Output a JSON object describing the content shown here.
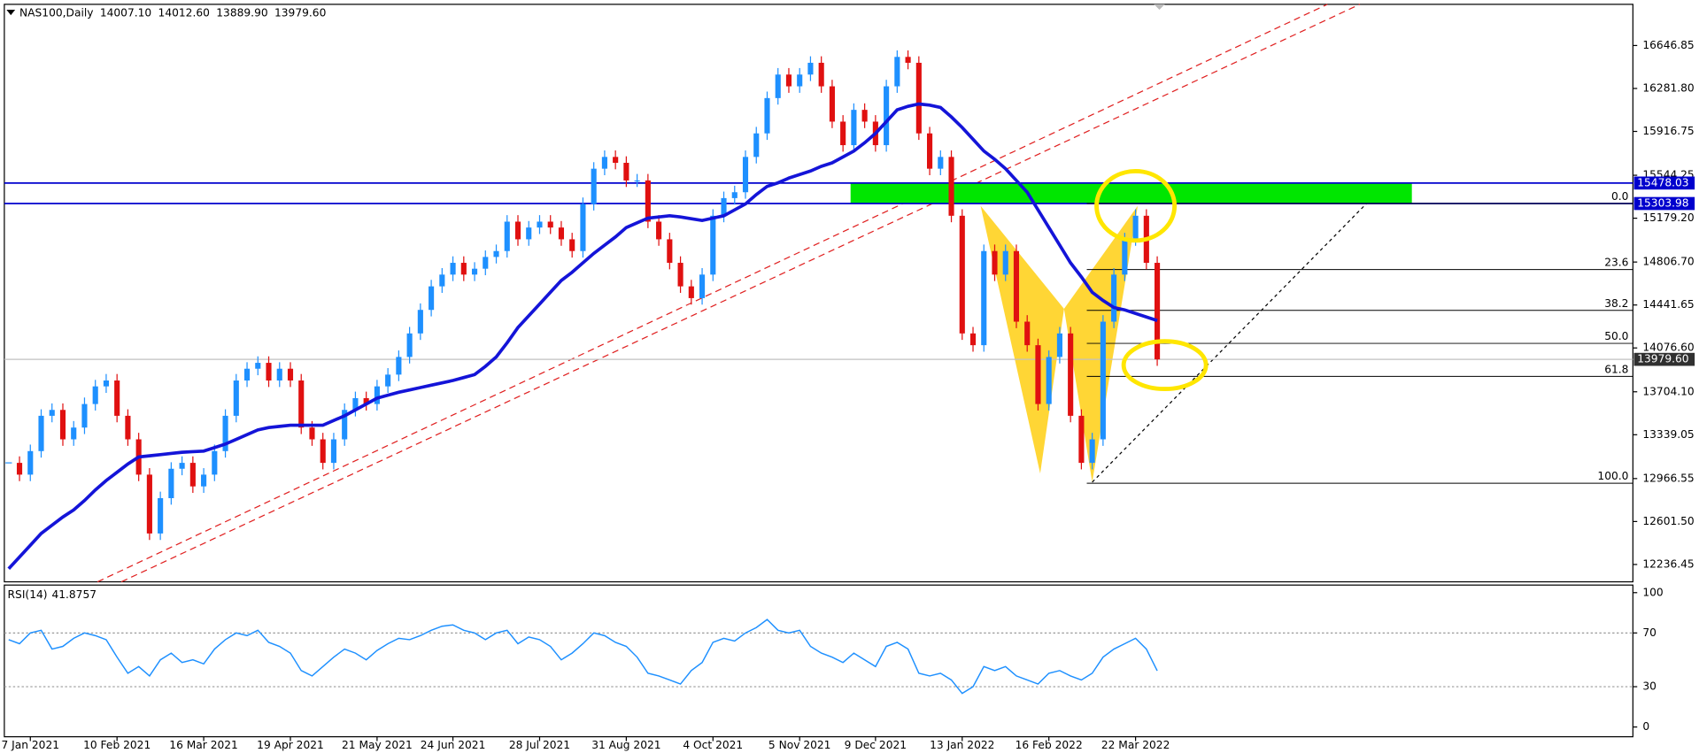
{
  "chart_data": [
    {
      "type": "candlestick",
      "title": "NAS100,Daily",
      "header_values": [
        14007.1,
        14012.6,
        13889.9,
        13979.6
      ],
      "header_value_labels": [
        "14007.10",
        "14012.60",
        "13889.90",
        "13979.60"
      ],
      "categories": [
        null,
        null,
        "7 Jan 2021",
        null,
        null,
        null,
        null,
        null,
        null,
        null,
        "10 Feb 2021",
        null,
        null,
        null,
        null,
        null,
        null,
        null,
        "16 Mar 2021",
        null,
        null,
        null,
        null,
        null,
        null,
        null,
        "19 Apr 2021",
        null,
        null,
        null,
        null,
        null,
        null,
        null,
        "21 May 2021",
        null,
        null,
        null,
        null,
        null,
        null,
        "24 Jun 2021",
        null,
        null,
        null,
        null,
        null,
        null,
        null,
        "28 Jul 2021",
        null,
        null,
        null,
        null,
        null,
        null,
        null,
        "31 Aug 2021",
        null,
        null,
        null,
        null,
        null,
        null,
        null,
        "4 Oct 2021",
        null,
        null,
        null,
        null,
        null,
        null,
        null,
        "5 Nov 2021",
        null,
        null,
        null,
        null,
        null,
        null,
        "9 Dec 2021",
        null,
        null,
        null,
        null,
        null,
        null,
        null,
        "13 Jan 2022",
        null,
        null,
        null,
        null,
        null,
        null,
        null,
        "16 Feb 2022",
        null,
        null,
        null,
        null,
        null,
        null,
        null,
        "22 Mar 2022",
        null,
        null
      ],
      "close": [
        13100,
        13000,
        13200,
        13500,
        13550,
        13300,
        13400,
        13600,
        13750,
        13800,
        13500,
        13300,
        13000,
        12500,
        12800,
        13050,
        13100,
        12900,
        13000,
        13200,
        13500,
        13800,
        13900,
        13950,
        13800,
        13900,
        13800,
        13400,
        13300,
        13100,
        13300,
        13550,
        13650,
        13600,
        13750,
        13850,
        14000,
        14200,
        14400,
        14600,
        14700,
        14800,
        14700,
        14750,
        14850,
        14900,
        15150,
        15000,
        15100,
        15150,
        15100,
        15000,
        14900,
        15300,
        15600,
        15700,
        15650,
        15500,
        15500,
        15150,
        15000,
        14800,
        14600,
        14500,
        14700,
        15200,
        15350,
        15400,
        15700,
        15900,
        16200,
        16400,
        16300,
        16400,
        16500,
        16300,
        16000,
        15800,
        16100,
        16000,
        15800,
        16300,
        16550,
        16500,
        15900,
        15600,
        15700,
        15200,
        14200,
        14100,
        14900,
        14700,
        14900,
        14300,
        14100,
        13600,
        14000,
        14200,
        13500,
        13100,
        13300,
        14300,
        14700,
        15000,
        15200,
        14800,
        13979.6
      ],
      "up_color": "#1e90ff",
      "down_color": "#e01010",
      "series": [
        {
          "color": "#1414d8",
          "values": [
            12200,
            12300,
            12400,
            12500,
            12570,
            12640,
            12700,
            12780,
            12870,
            12950,
            13020,
            13090,
            13150,
            13160,
            13170,
            13180,
            13190,
            13195,
            13200,
            13230,
            13260,
            13300,
            13340,
            13380,
            13400,
            13410,
            13420,
            13420,
            13420,
            13420,
            13460,
            13500,
            13550,
            13600,
            13650,
            13675,
            13700,
            13720,
            13740,
            13760,
            13780,
            13800,
            13825,
            13850,
            13920,
            14000,
            14120,
            14250,
            14350,
            14450,
            14550,
            14650,
            14720,
            14800,
            14880,
            14950,
            15020,
            15100,
            15140,
            15180,
            15190,
            15200,
            15190,
            15175,
            15160,
            15180,
            15200,
            15250,
            15300,
            15380,
            15450,
            15480,
            15520,
            15550,
            15580,
            15620,
            15650,
            15700,
            15750,
            15820,
            15900,
            16000,
            16100,
            16130,
            16150,
            16140,
            16120,
            16040,
            15950,
            15850,
            15750,
            15680,
            15600,
            15500,
            15400,
            15250,
            15100,
            14950,
            14800,
            14680,
            14550,
            14480,
            14420,
            14400,
            14370,
            14340,
            14310
          ]
        }
      ],
      "ylim": [
        12089.13,
        16996.74
      ],
      "yticks": [
        {
          "value": 16646.85,
          "label": "16646.85"
        },
        {
          "value": 16281.8,
          "label": "16281.80"
        },
        {
          "value": 15916.75,
          "label": "15916.75"
        },
        {
          "value": 15544.25,
          "label": "15544.25"
        },
        {
          "value": 15179.2,
          "label": "15179.20"
        },
        {
          "value": 14806.7,
          "label": "14806.70"
        },
        {
          "value": 14441.65,
          "label": "14441.65"
        },
        {
          "value": 14076.6,
          "label": "14076.60"
        },
        {
          "value": 13704.1,
          "label": "13704.10"
        },
        {
          "value": 13339.05,
          "label": "13339.05"
        },
        {
          "value": 12966.55,
          "label": "12966.55"
        },
        {
          "value": 12601.5,
          "label": "12601.50"
        },
        {
          "value": 12236.45,
          "label": "12236.45"
        }
      ],
      "levels": [
        15478.03,
        15303.98
      ],
      "level_color": "#0000cd",
      "zone_color": "#00e600",
      "last_price": {
        "value": 13979.6,
        "label": "13979.60"
      },
      "fib": {
        "high": 15303.98,
        "low": 12927.1,
        "levels": [
          {
            "value": 0,
            "label": "0.0"
          },
          23.6,
          38.2,
          {
            "value": 50,
            "label": "50.0"
          },
          61.8,
          {
            "value": 100,
            "label": "100.0"
          }
        ]
      }
    },
    {
      "type": "line",
      "title": "RSI(14)",
      "color": "#1e90ff",
      "values": [
        65,
        62,
        70,
        72,
        58,
        60,
        66,
        70,
        68,
        65,
        52,
        40,
        45,
        38,
        50,
        55,
        48,
        50,
        47,
        58,
        65,
        70,
        68,
        72,
        63,
        60,
        55,
        42,
        38,
        45,
        52,
        58,
        55,
        50,
        57,
        62,
        66,
        65,
        68,
        72,
        75,
        76,
        72,
        70,
        65,
        70,
        72,
        62,
        67,
        65,
        60,
        50,
        55,
        62,
        70,
        68,
        63,
        60,
        52,
        40,
        38,
        35,
        32,
        42,
        48,
        63,
        66,
        64,
        70,
        74,
        80,
        72,
        70,
        72,
        60,
        55,
        52,
        48,
        55,
        50,
        45,
        60,
        63,
        58,
        40,
        38,
        40,
        35,
        25,
        30,
        45,
        42,
        45,
        38,
        35,
        32,
        40,
        42,
        38,
        35,
        40,
        52,
        58,
        62,
        66,
        58,
        41.8757
      ],
      "ylim": [
        0,
        100
      ],
      "yticks": [
        100,
        70,
        30,
        0
      ],
      "dotted_levels": [
        70,
        30
      ]
    }
  ]
}
